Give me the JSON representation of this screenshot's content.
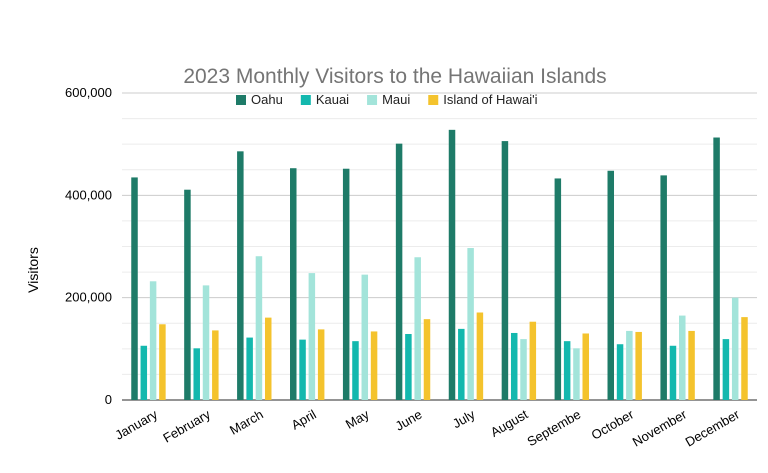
{
  "chart_data": {
    "type": "bar",
    "title": "2023 Monthly Visitors to the Hawaiian Islands",
    "xlabel": "",
    "ylabel": "Visitors",
    "ylim": [
      0,
      600000
    ],
    "yticks": [
      0,
      200000,
      400000,
      600000
    ],
    "ytick_labels": [
      "0",
      "200,000",
      "400,000",
      "600,000"
    ],
    "grid": true,
    "legend_position": "top",
    "categories": [
      "January",
      "February",
      "March",
      "April",
      "May",
      "June",
      "July",
      "August",
      "Septembe",
      "October",
      "November",
      "December"
    ],
    "series": [
      {
        "name": "Oahu",
        "color": "#1e7b68",
        "values": [
          435000,
          411000,
          486000,
          453000,
          452000,
          501000,
          528000,
          506000,
          433000,
          448000,
          439000,
          513000
        ]
      },
      {
        "name": "Kauai",
        "color": "#13b8ae",
        "values": [
          106000,
          101000,
          122000,
          118000,
          115000,
          129000,
          139000,
          131000,
          115000,
          109000,
          106000,
          119000
        ]
      },
      {
        "name": "Maui",
        "color": "#a3e4da",
        "values": [
          232000,
          224000,
          281000,
          248000,
          245000,
          279000,
          297000,
          119000,
          101000,
          135000,
          165000,
          200000
        ]
      },
      {
        "name": "Island of Hawai'i",
        "color": "#f4c32d",
        "values": [
          148000,
          136000,
          161000,
          138000,
          134000,
          158000,
          171000,
          153000,
          130000,
          133000,
          135000,
          162000
        ]
      }
    ]
  }
}
